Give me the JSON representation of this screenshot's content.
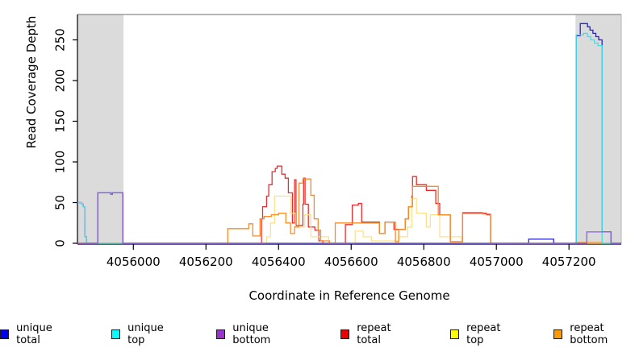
{
  "chart_data": {
    "type": "line",
    "interpolation": "step-after",
    "title": "",
    "xlabel": "Coordinate in Reference Genome",
    "ylabel": "Read Coverage Depth",
    "xlim": [
      4055846,
      4057344
    ],
    "ylim": [
      0,
      281
    ],
    "xticks": [
      4056000,
      4056200,
      4056400,
      4056600,
      4056800,
      4057000,
      4057200
    ],
    "yticks": [
      0,
      50,
      100,
      150,
      200,
      250
    ],
    "grid": "off",
    "legend_position": "bottom",
    "shade_color": "#DBDBDB",
    "shaded_regions": [
      [
        4055846,
        4055973
      ],
      [
        4057218,
        4057344
      ]
    ],
    "series": [
      {
        "name": "unique total",
        "color": "#0000EE",
        "line_color": "#2323D9",
        "z": 4,
        "points": [
          [
            4055846,
            50
          ],
          [
            4055858,
            48
          ],
          [
            4055862,
            45
          ],
          [
            4055867,
            8
          ],
          [
            4055871,
            0
          ],
          [
            4055902,
            62
          ],
          [
            4055938,
            60
          ],
          [
            4055942,
            62
          ],
          [
            4055971,
            0
          ],
          [
            4057089,
            5
          ],
          [
            4057158,
            0
          ],
          [
            4057220,
            255
          ],
          [
            4057231,
            270
          ],
          [
            4057251,
            266
          ],
          [
            4057258,
            262
          ],
          [
            4057266,
            258
          ],
          [
            4057274,
            254
          ],
          [
            4057282,
            250
          ],
          [
            4057291,
            14
          ],
          [
            4057316,
            0
          ],
          [
            4057344,
            0
          ]
        ]
      },
      {
        "name": "unique top",
        "color": "#00FFFF",
        "line_color": "#3FE2E8",
        "z": 5,
        "points": [
          [
            4055846,
            50
          ],
          [
            4055858,
            48
          ],
          [
            4055862,
            45
          ],
          [
            4055867,
            8
          ],
          [
            4055871,
            0
          ],
          [
            4057220,
            256
          ],
          [
            4057240,
            258
          ],
          [
            4057251,
            254
          ],
          [
            4057260,
            250
          ],
          [
            4057270,
            246
          ],
          [
            4057280,
            243
          ],
          [
            4057291,
            0
          ],
          [
            4057344,
            0
          ]
        ]
      },
      {
        "name": "unique bottom",
        "color": "#9933CC",
        "line_color": "#8F5CE8",
        "z": 6,
        "points": [
          [
            4055846,
            0
          ],
          [
            4055902,
            62
          ],
          [
            4055938,
            60
          ],
          [
            4055942,
            62
          ],
          [
            4055971,
            0
          ],
          [
            4057249,
            14
          ],
          [
            4057316,
            0
          ],
          [
            4057344,
            0
          ]
        ]
      },
      {
        "name": "repeat total",
        "color": "#EE0000",
        "line_color": "#F02B2B",
        "z": 1,
        "points": [
          [
            4055846,
            0
          ],
          [
            4056349,
            0
          ],
          [
            4056353,
            30
          ],
          [
            4056356,
            45
          ],
          [
            4056367,
            58
          ],
          [
            4056373,
            72
          ],
          [
            4056382,
            88
          ],
          [
            4056391,
            92
          ],
          [
            4056396,
            95
          ],
          [
            4056409,
            85
          ],
          [
            4056418,
            80
          ],
          [
            4056427,
            62
          ],
          [
            4056438,
            25
          ],
          [
            4056444,
            78
          ],
          [
            4056448,
            22
          ],
          [
            4056467,
            48
          ],
          [
            4056469,
            80
          ],
          [
            4056473,
            48
          ],
          [
            4056482,
            20
          ],
          [
            4056500,
            16
          ],
          [
            4056511,
            3
          ],
          [
            4056522,
            0
          ],
          [
            4056584,
            23
          ],
          [
            4056603,
            47
          ],
          [
            4056620,
            49
          ],
          [
            4056629,
            26
          ],
          [
            4056678,
            12
          ],
          [
            4056693,
            26
          ],
          [
            4056718,
            17
          ],
          [
            4056749,
            30
          ],
          [
            4056758,
            45
          ],
          [
            4056767,
            58
          ],
          [
            4056769,
            82
          ],
          [
            4056780,
            72
          ],
          [
            4056807,
            65
          ],
          [
            4056833,
            49
          ],
          [
            4056844,
            35
          ],
          [
            4056873,
            2
          ],
          [
            4056907,
            37
          ],
          [
            4056973,
            35
          ],
          [
            4056984,
            0
          ],
          [
            4057344,
            0
          ]
        ]
      },
      {
        "name": "repeat top",
        "color": "#FFFF00",
        "line_color": "#FFE08A",
        "z": 2,
        "points": [
          [
            4055846,
            0
          ],
          [
            4056360,
            0
          ],
          [
            4056367,
            8
          ],
          [
            4056378,
            25
          ],
          [
            4056389,
            58
          ],
          [
            4056433,
            37
          ],
          [
            4056446,
            20
          ],
          [
            4056472,
            35
          ],
          [
            4056489,
            8
          ],
          [
            4056538,
            0
          ],
          [
            4056611,
            15
          ],
          [
            4056633,
            8
          ],
          [
            4056656,
            3
          ],
          [
            4056731,
            8
          ],
          [
            4056756,
            20
          ],
          [
            4056767,
            55
          ],
          [
            4056780,
            37
          ],
          [
            4056807,
            20
          ],
          [
            4056818,
            35
          ],
          [
            4056844,
            8
          ],
          [
            4056904,
            0
          ],
          [
            4057344,
            0
          ]
        ]
      },
      {
        "name": "repeat bottom",
        "color": "#FF9900",
        "line_color": "#F78C28",
        "z": 3,
        "points": [
          [
            4055846,
            0
          ],
          [
            4056260,
            18
          ],
          [
            4056318,
            24
          ],
          [
            4056329,
            9
          ],
          [
            4056349,
            30
          ],
          [
            4056360,
            33
          ],
          [
            4056380,
            35
          ],
          [
            4056400,
            37
          ],
          [
            4056420,
            25
          ],
          [
            4056433,
            12
          ],
          [
            4056444,
            20
          ],
          [
            4056456,
            74
          ],
          [
            4056467,
            79
          ],
          [
            4056489,
            59
          ],
          [
            4056498,
            30
          ],
          [
            4056509,
            16
          ],
          [
            4056516,
            3
          ],
          [
            4056540,
            0
          ],
          [
            4056556,
            25
          ],
          [
            4056678,
            12
          ],
          [
            4056693,
            26
          ],
          [
            4056722,
            2
          ],
          [
            4056731,
            17
          ],
          [
            4056749,
            30
          ],
          [
            4056758,
            45
          ],
          [
            4056769,
            70
          ],
          [
            4056840,
            35
          ],
          [
            4056873,
            2
          ],
          [
            4056907,
            38
          ],
          [
            4056962,
            36
          ],
          [
            4056984,
            0
          ],
          [
            4057218,
            1
          ],
          [
            4057291,
            0
          ],
          [
            4057344,
            0
          ]
        ]
      }
    ]
  }
}
